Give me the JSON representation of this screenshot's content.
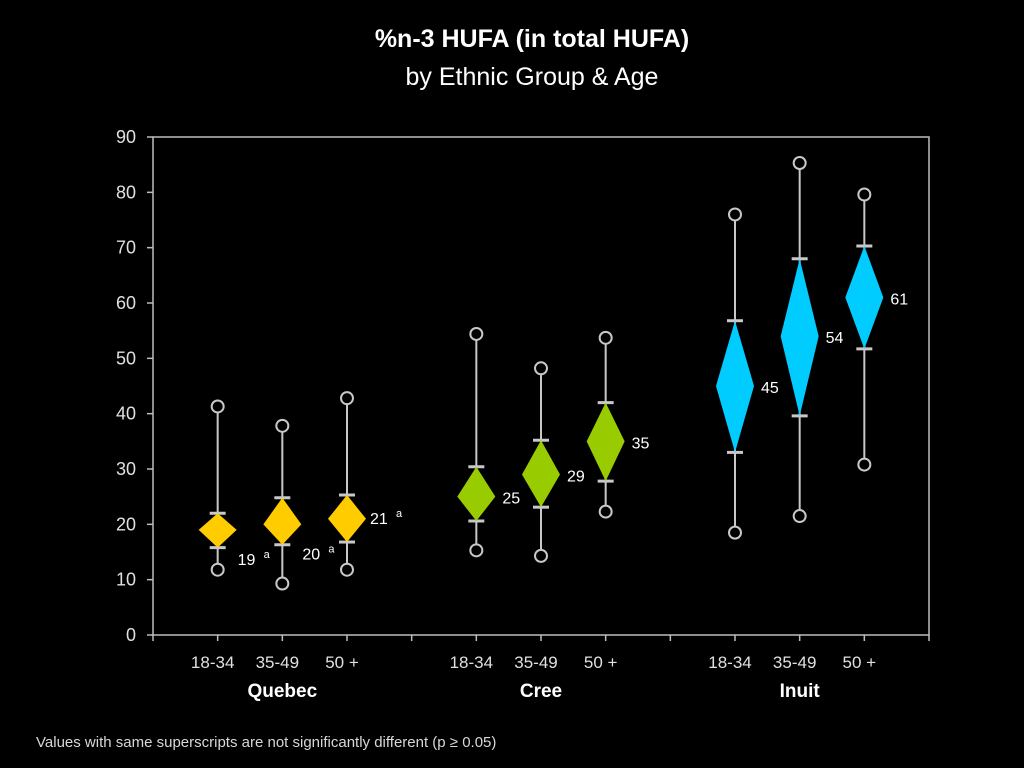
{
  "chart_data": {
    "type": "scatter",
    "title": "%n-3 HUFA (in total HUFA)",
    "subtitle": "by Ethnic Group & Age",
    "xlabel": "",
    "ylabel": "",
    "ylim": [
      0,
      90
    ],
    "yticks": [
      0,
      10,
      20,
      30,
      40,
      50,
      60,
      70,
      80,
      90
    ],
    "grid": false,
    "groups": [
      {
        "name": "Quebec",
        "color": "#FFCC00",
        "points": [
          {
            "category": "18-34",
            "mean": 19,
            "label": "19",
            "superscript": "a",
            "ci_low": 15.8,
            "ci_high": 22,
            "min": 11.8,
            "max": 41.3
          },
          {
            "category": "35-49",
            "mean": 20,
            "label": "20",
            "superscript": "a",
            "ci_low": 16.3,
            "ci_high": 24.8,
            "min": 9.3,
            "max": 37.8
          },
          {
            "category": "50 +",
            "mean": 21,
            "label": "21",
            "superscript": "a",
            "ci_low": 16.8,
            "ci_high": 25.3,
            "min": 11.8,
            "max": 42.8
          }
        ]
      },
      {
        "name": "Cree",
        "color": "#99CC00",
        "points": [
          {
            "category": "18-34",
            "mean": 25,
            "label": "25",
            "superscript": "",
            "ci_low": 20.6,
            "ci_high": 30.4,
            "min": 15.3,
            "max": 54.4
          },
          {
            "category": "35-49",
            "mean": 29,
            "label": "29",
            "superscript": "",
            "ci_low": 23.1,
            "ci_high": 35.2,
            "min": 14.3,
            "max": 48.2
          },
          {
            "category": "50 +",
            "mean": 35,
            "label": "35",
            "superscript": "",
            "ci_low": 27.8,
            "ci_high": 42,
            "min": 22.3,
            "max": 53.7
          }
        ]
      },
      {
        "name": "Inuit",
        "color": "#00CCFF",
        "points": [
          {
            "category": "18-34",
            "mean": 45,
            "label": "45",
            "superscript": "",
            "ci_low": 33,
            "ci_high": 56.8,
            "min": 18.5,
            "max": 76
          },
          {
            "category": "35-49",
            "mean": 54,
            "label": "54",
            "superscript": "",
            "ci_low": 39.6,
            "ci_high": 68,
            "min": 21.5,
            "max": 85.3
          },
          {
            "category": "50 +",
            "mean": 61,
            "label": "61",
            "superscript": "",
            "ci_low": 51.7,
            "ci_high": 70.3,
            "min": 30.8,
            "max": 79.6
          }
        ]
      }
    ],
    "footnote": "Values with same superscripts are not significantly different (p ≥ 0.05)"
  }
}
